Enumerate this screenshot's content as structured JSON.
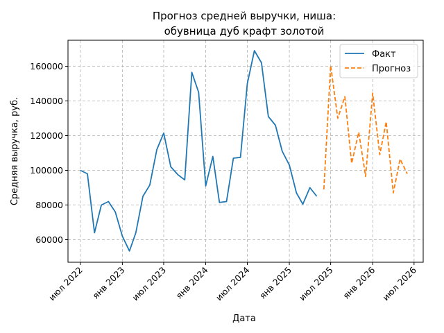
{
  "chart_data": {
    "type": "line",
    "title_line1": "Прогноз средней выручки, ниша:",
    "title_line2": "обувница дуб крафт золотой",
    "xlabel": "Дата",
    "ylabel": "Средняя выручка, руб.",
    "ylim": [
      47000,
      175000
    ],
    "yticks": [
      60000,
      80000,
      100000,
      120000,
      140000,
      160000
    ],
    "xticks": [
      "2022-07-01",
      "2023-01-01",
      "2023-07-01",
      "2024-01-01",
      "2024-07-01",
      "2025-01-01",
      "2025-07-01",
      "2026-01-01",
      "2026-07-01"
    ],
    "xtick_labels": [
      "июл 2022",
      "янв 2023",
      "июл 2023",
      "янв 2024",
      "июл 2024",
      "янв 2025",
      "июл 2025",
      "янв 2026",
      "июл 2026"
    ],
    "xlim": [
      "2022-05-08",
      "2026-08-10"
    ],
    "grid": true,
    "legend_position": "top-right",
    "series": [
      {
        "name": "Факт",
        "color": "#1f77b4",
        "dashed": false,
        "x": [
          "2022-07-01",
          "2022-08-01",
          "2022-09-01",
          "2022-10-01",
          "2022-11-01",
          "2022-12-01",
          "2023-01-01",
          "2023-02-01",
          "2023-03-01",
          "2023-04-01",
          "2023-05-01",
          "2023-06-01",
          "2023-07-01",
          "2023-08-01",
          "2023-09-01",
          "2023-10-01",
          "2023-11-01",
          "2023-12-01",
          "2024-01-01",
          "2024-02-01",
          "2024-03-01",
          "2024-04-01",
          "2024-05-01",
          "2024-06-01",
          "2024-07-01",
          "2024-08-01",
          "2024-09-01",
          "2024-10-01",
          "2024-11-01",
          "2024-12-01",
          "2025-01-01",
          "2025-02-01",
          "2025-03-01",
          "2025-04-01",
          "2025-05-01"
        ],
        "y": [
          100000,
          98000,
          64000,
          80000,
          82000,
          76000,
          62000,
          53500,
          64000,
          85000,
          91500,
          112000,
          121500,
          102000,
          97500,
          94500,
          156500,
          145000,
          91000,
          108000,
          81500,
          82000,
          107000,
          107500,
          150000,
          169000,
          162000,
          131000,
          126000,
          111000,
          103000,
          87000,
          80500,
          90000,
          85000
        ]
      },
      {
        "name": "Прогноз",
        "color": "#ff7f0e",
        "dashed": true,
        "x": [
          "2025-06-01",
          "2025-07-01",
          "2025-08-01",
          "2025-09-01",
          "2025-10-01",
          "2025-11-01",
          "2025-12-01",
          "2026-01-01",
          "2026-02-01",
          "2026-03-01",
          "2026-04-01",
          "2026-05-01",
          "2026-06-01"
        ],
        "y": [
          89000,
          160500,
          130000,
          142500,
          104000,
          122000,
          96500,
          144500,
          109000,
          128000,
          87000,
          106500,
          98000
        ]
      }
    ]
  }
}
